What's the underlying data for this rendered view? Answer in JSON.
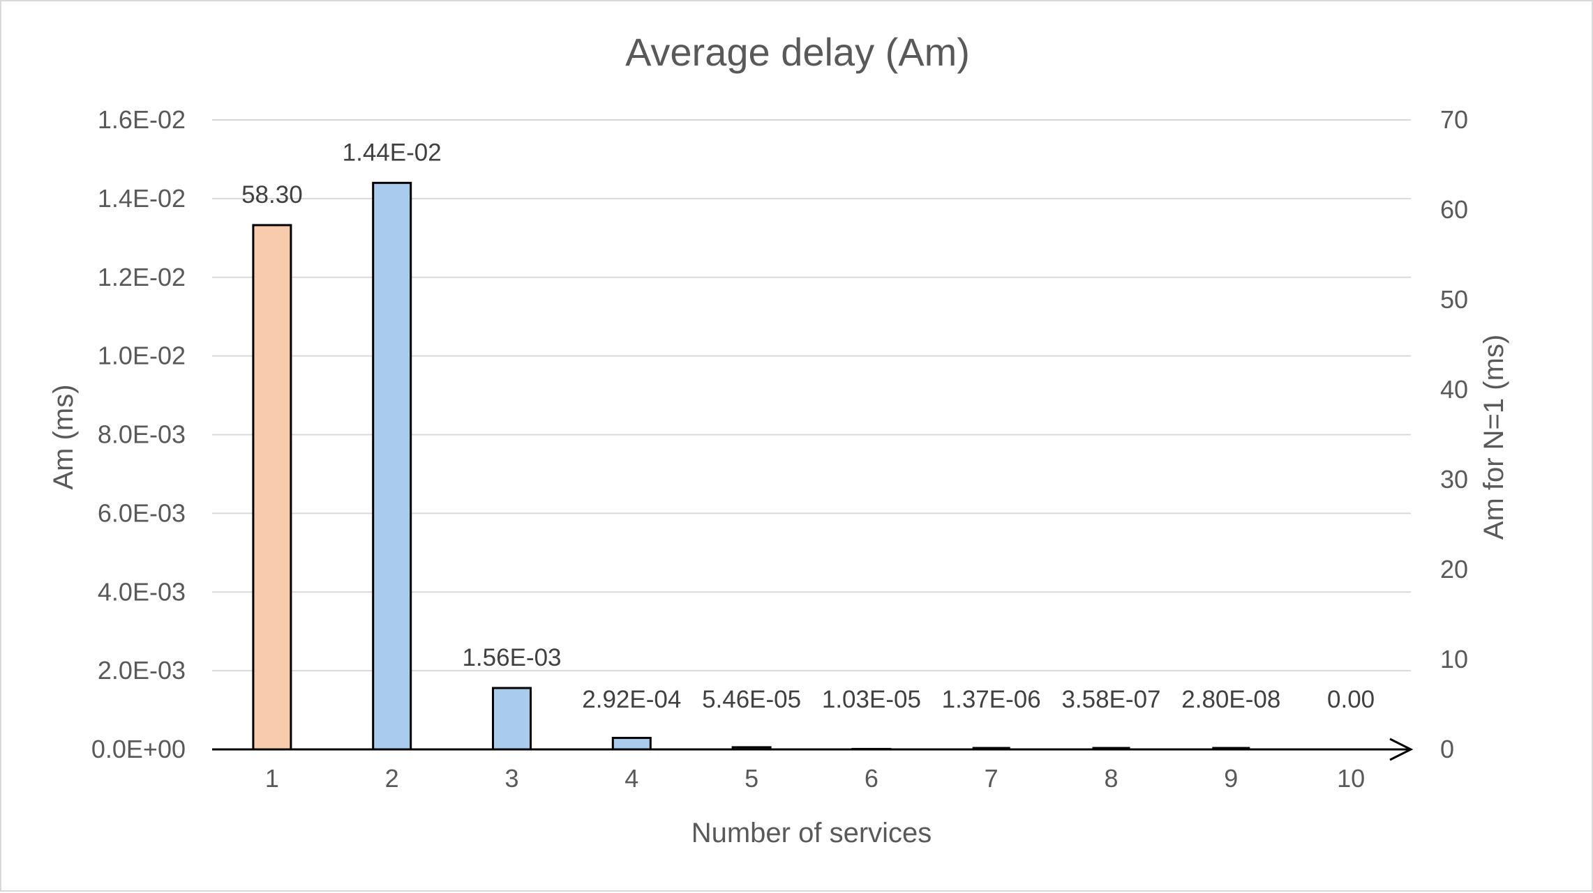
{
  "chart_data": {
    "type": "bar",
    "title": "Average delay (Am)",
    "xlabel": "Number of services",
    "ylabel": "Am (ms)",
    "y2label": "Am for N=1 (ms)",
    "categories": [
      "1",
      "2",
      "3",
      "4",
      "5",
      "6",
      "7",
      "8",
      "9",
      "10"
    ],
    "ylim": [
      0,
      0.016
    ],
    "yticks": [
      0,
      0.002,
      0.004,
      0.006,
      0.008,
      0.01,
      0.012,
      0.014,
      0.016
    ],
    "ytick_labels": [
      "0.0E+00",
      "2.0E-03",
      "4.0E-03",
      "6.0E-03",
      "8.0E-03",
      "1.0E-02",
      "1.2E-02",
      "1.4E-02",
      "1.6E-02"
    ],
    "y2lim": [
      0,
      70
    ],
    "y2ticks": [
      0,
      10,
      20,
      30,
      40,
      50,
      60,
      70
    ],
    "y2tick_labels": [
      "0",
      "10",
      "20",
      "30",
      "40",
      "50",
      "60",
      "70"
    ],
    "grid": true,
    "series": [
      {
        "axis": "secondary",
        "color": "#f8cbad",
        "values": [
          58.3,
          null,
          null,
          null,
          null,
          null,
          null,
          null,
          null,
          null
        ],
        "labels": [
          "58.30",
          "",
          "",
          "",
          "",
          "",
          "",
          "",
          "",
          ""
        ]
      },
      {
        "axis": "primary",
        "color": "#a9cbec",
        "values": [
          null,
          0.0144,
          0.00156,
          0.000292,
          5.46e-05,
          1.03e-05,
          1.37e-06,
          3.58e-07,
          2.8e-08,
          0
        ],
        "labels": [
          "",
          "1.44E-02",
          "1.56E-03",
          "2.92E-04",
          "5.46E-05",
          "1.03E-05",
          "1.37E-06",
          "3.58E-07",
          "2.80E-08",
          "0.00"
        ]
      }
    ]
  }
}
